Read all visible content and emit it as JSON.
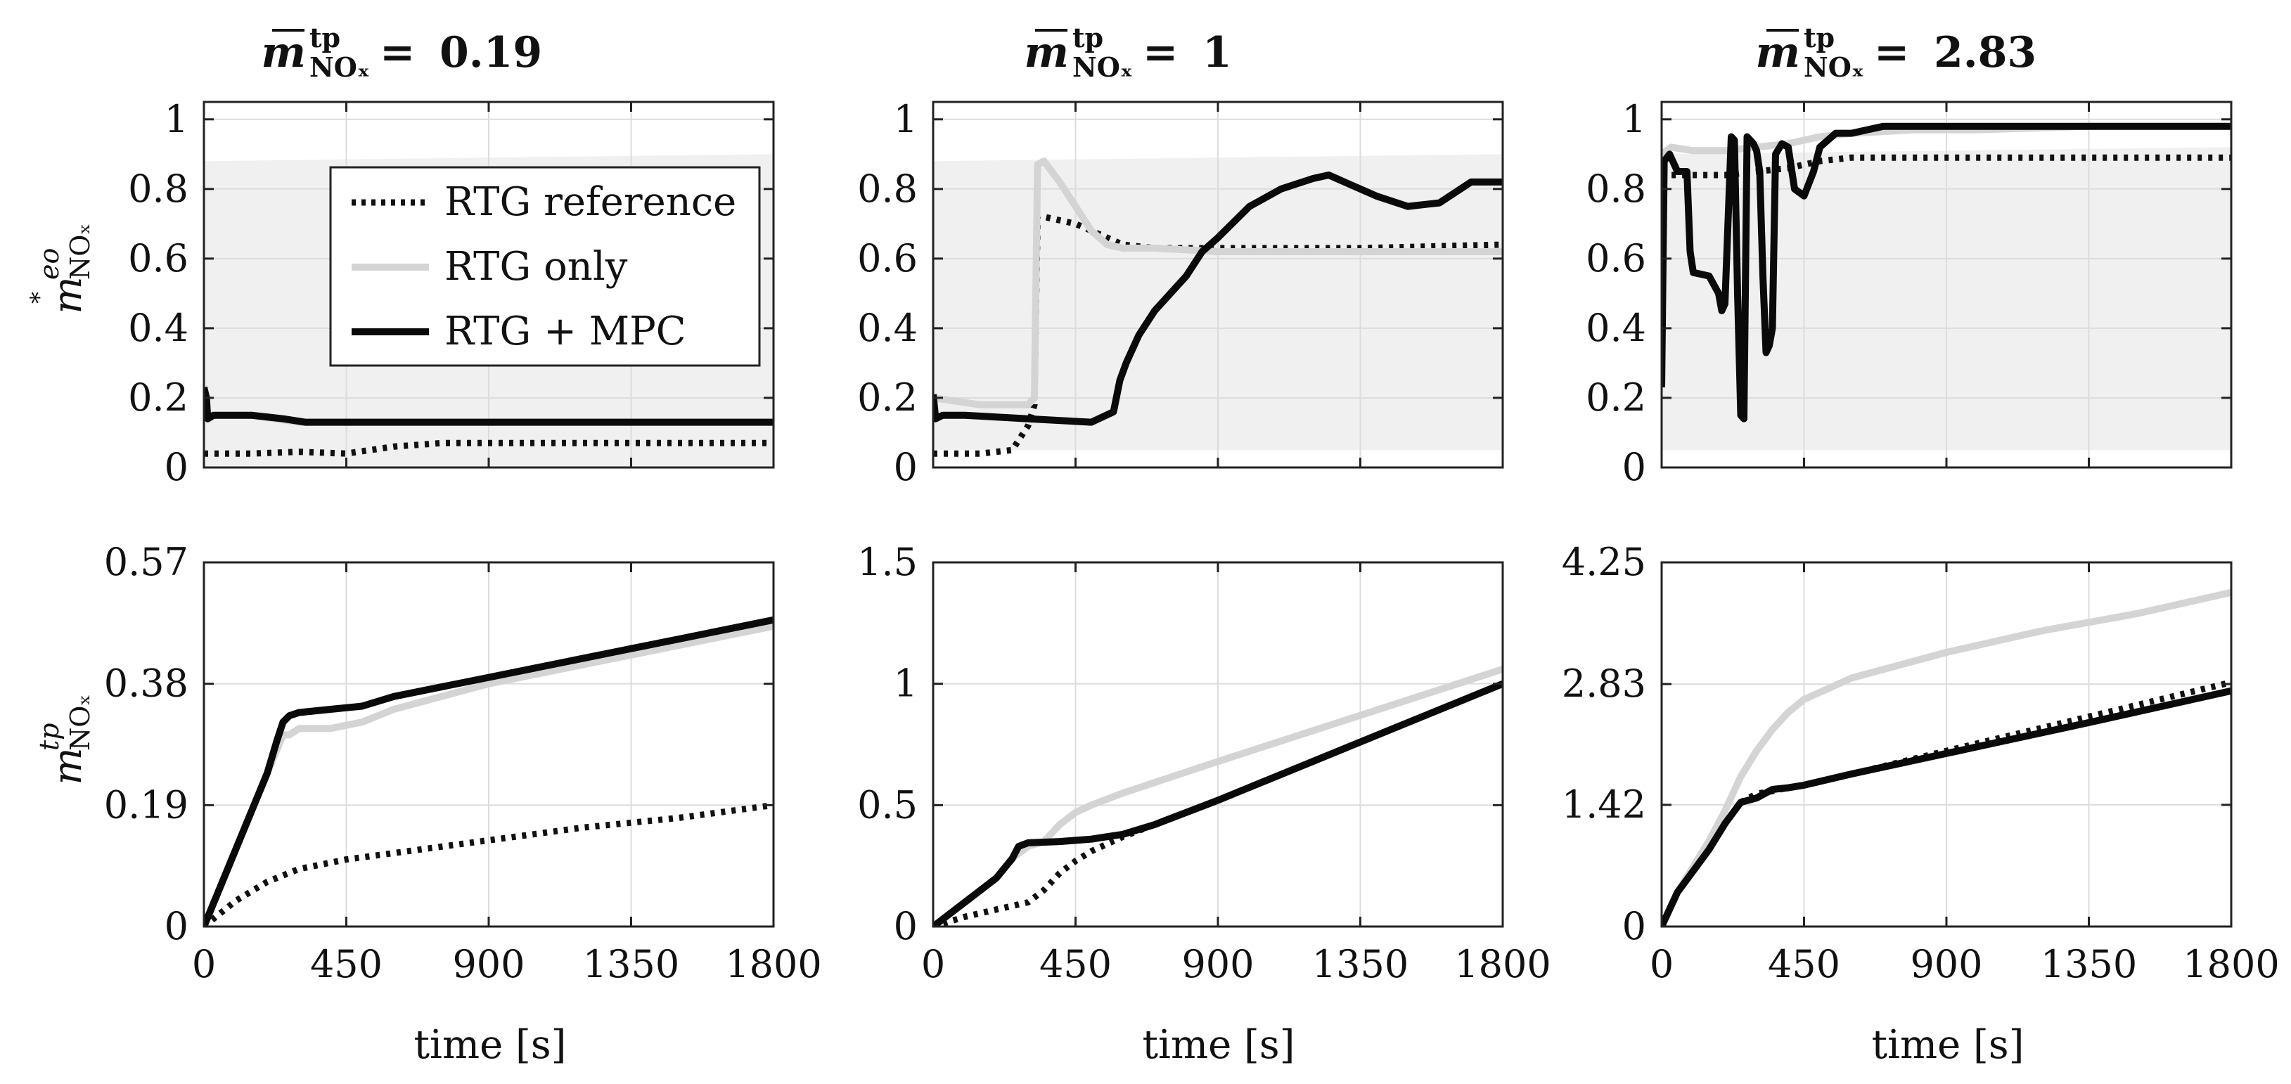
{
  "chart_data": [
    {
      "type": "line",
      "panel": "top-left",
      "title": "m̄ᵗᵖNOₓ = 0.19",
      "title_value": "0.19",
      "xlabel": "",
      "ylabel": "m*eoNOₓ",
      "xlim": [
        0,
        1800
      ],
      "ylim": [
        0,
        1.05
      ],
      "xticks": [
        0,
        450,
        900,
        1350,
        1800
      ],
      "xticklabels": [],
      "yticks": [
        0,
        0.2,
        0.4,
        0.6,
        0.8,
        1
      ],
      "yticklabels": [
        "0",
        "0.2",
        "0.4",
        "0.6",
        "0.8",
        "1"
      ],
      "band": {
        "x": [
          0,
          1800
        ],
        "lower": [
          0.0,
          0.0
        ],
        "upper": [
          0.88,
          0.9
        ]
      },
      "series": [
        {
          "name": "RTG reference",
          "style": "dotted",
          "x": [
            0,
            20,
            150,
            300,
            450,
            600,
            750,
            900,
            1200,
            1500,
            1800
          ],
          "y": [
            0.04,
            0.04,
            0.04,
            0.045,
            0.04,
            0.06,
            0.07,
            0.07,
            0.07,
            0.07,
            0.07
          ]
        },
        {
          "name": "RTG only",
          "style": "gray",
          "x": [
            0,
            10,
            60,
            150,
            300,
            450,
            600,
            900,
            1350,
            1800
          ],
          "y": [
            0.14,
            0.15,
            0.15,
            0.15,
            0.13,
            0.13,
            0.13,
            0.13,
            0.13,
            0.13
          ]
        },
        {
          "name": "RTG + MPC",
          "style": "solid",
          "x": [
            0,
            8,
            12,
            30,
            60,
            150,
            250,
            320,
            450,
            600,
            900,
            1350,
            1800
          ],
          "y": [
            0.23,
            0.2,
            0.14,
            0.15,
            0.15,
            0.15,
            0.14,
            0.13,
            0.13,
            0.13,
            0.13,
            0.13,
            0.13
          ]
        }
      ],
      "legend": {
        "location": "top-right",
        "entries": [
          "RTG reference",
          "RTG only",
          "RTG + MPC"
        ]
      }
    },
    {
      "type": "line",
      "panel": "top-middle",
      "title": "m̄ᵗᵖNOₓ = 1",
      "title_value": "1",
      "xlabel": "",
      "ylabel": "",
      "xlim": [
        0,
        1800
      ],
      "ylim": [
        0,
        1.05
      ],
      "xticks": [
        0,
        450,
        900,
        1350,
        1800
      ],
      "xticklabels": [],
      "yticks": [
        0,
        0.2,
        0.4,
        0.6,
        0.8,
        1
      ],
      "yticklabels": [
        "0",
        "0.2",
        "0.4",
        "0.6",
        "0.8",
        "1"
      ],
      "band": {
        "x": [
          0,
          1800
        ],
        "lower": [
          0.05,
          0.05
        ],
        "upper": [
          0.88,
          0.9
        ]
      },
      "series": [
        {
          "name": "RTG reference",
          "style": "dotted",
          "x": [
            0,
            150,
            250,
            300,
            320,
            330,
            350,
            400,
            450,
            500,
            550,
            600,
            700,
            900,
            1350,
            1800
          ],
          "y": [
            0.04,
            0.04,
            0.05,
            0.12,
            0.18,
            0.72,
            0.72,
            0.71,
            0.7,
            0.68,
            0.66,
            0.64,
            0.63,
            0.63,
            0.63,
            0.64
          ]
        },
        {
          "name": "RTG only",
          "style": "gray",
          "x": [
            0,
            150,
            300,
            320,
            330,
            350,
            400,
            450,
            500,
            550,
            600,
            650,
            700,
            900,
            1350,
            1800
          ],
          "y": [
            0.2,
            0.18,
            0.18,
            0.2,
            0.87,
            0.88,
            0.82,
            0.75,
            0.68,
            0.64,
            0.63,
            0.63,
            0.63,
            0.62,
            0.62,
            0.62
          ]
        },
        {
          "name": "RTG + MPC",
          "style": "solid",
          "x": [
            0,
            8,
            30,
            100,
            300,
            500,
            570,
            590,
            610,
            650,
            700,
            800,
            850,
            900,
            1000,
            1100,
            1200,
            1250,
            1300,
            1400,
            1500,
            1600,
            1700,
            1800
          ],
          "y": [
            0.21,
            0.14,
            0.15,
            0.15,
            0.14,
            0.13,
            0.16,
            0.25,
            0.3,
            0.38,
            0.45,
            0.55,
            0.62,
            0.66,
            0.75,
            0.8,
            0.83,
            0.84,
            0.82,
            0.78,
            0.75,
            0.76,
            0.82,
            0.82
          ]
        }
      ]
    },
    {
      "type": "line",
      "panel": "top-right",
      "title": "m̄ᵗᵖNOₓ = 2.83",
      "title_value": "2.83",
      "xlabel": "",
      "ylabel": "",
      "xlim": [
        0,
        1800
      ],
      "ylim": [
        0,
        1.05
      ],
      "xticks": [
        0,
        450,
        900,
        1350,
        1800
      ],
      "xticklabels": [],
      "yticks": [
        0,
        0.2,
        0.4,
        0.6,
        0.8,
        1
      ],
      "yticklabels": [
        "0",
        "0.2",
        "0.4",
        "0.6",
        "0.8",
        "1"
      ],
      "band": {
        "x": [
          0,
          1800
        ],
        "lower": [
          0.05,
          0.05
        ],
        "upper": [
          0.9,
          0.92
        ]
      },
      "series": [
        {
          "name": "RTG reference",
          "style": "dotted",
          "x": [
            0,
            30,
            100,
            200,
            300,
            400,
            500,
            600,
            900,
            1350,
            1800
          ],
          "y": [
            0.83,
            0.84,
            0.84,
            0.84,
            0.85,
            0.86,
            0.88,
            0.89,
            0.89,
            0.89,
            0.89
          ]
        },
        {
          "name": "RTG only",
          "style": "gray",
          "x": [
            0,
            30,
            100,
            200,
            300,
            400,
            500,
            600,
            800,
            1000,
            1350,
            1800
          ],
          "y": [
            0.9,
            0.92,
            0.91,
            0.91,
            0.92,
            0.93,
            0.95,
            0.96,
            0.97,
            0.97,
            0.98,
            0.98
          ]
        },
        {
          "name": "RTG + MPC",
          "style": "solid",
          "x": [
            0,
            8,
            25,
            50,
            80,
            90,
            100,
            150,
            180,
            190,
            200,
            220,
            230,
            240,
            250,
            260,
            270,
            280,
            290,
            300,
            310,
            320,
            330,
            340,
            350,
            360,
            380,
            400,
            420,
            450,
            480,
            500,
            550,
            600,
            700,
            800,
            900,
            1000,
            1200,
            1400,
            1600,
            1800
          ],
          "y": [
            0.23,
            0.88,
            0.9,
            0.85,
            0.85,
            0.62,
            0.56,
            0.55,
            0.5,
            0.45,
            0.47,
            0.95,
            0.94,
            0.5,
            0.15,
            0.14,
            0.95,
            0.94,
            0.93,
            0.91,
            0.85,
            0.55,
            0.33,
            0.35,
            0.4,
            0.9,
            0.93,
            0.92,
            0.8,
            0.78,
            0.85,
            0.92,
            0.96,
            0.96,
            0.98,
            0.98,
            0.98,
            0.98,
            0.98,
            0.98,
            0.98,
            0.98
          ]
        }
      ]
    },
    {
      "type": "line",
      "panel": "bottom-left",
      "xlabel": "time [s]",
      "ylabel": "mᵗᵖNOₓ",
      "xlim": [
        0,
        1800
      ],
      "ylim": [
        0,
        0.57
      ],
      "xticks": [
        0,
        450,
        900,
        1350,
        1800
      ],
      "xticklabels": [
        "0",
        "450",
        "900",
        "1350",
        "1800"
      ],
      "yticks": [
        0,
        0.19,
        0.38,
        0.57
      ],
      "yticklabels": [
        "0",
        "0.19",
        "0.38",
        "0.57"
      ],
      "series": [
        {
          "name": "RTG reference",
          "style": "dotted",
          "x": [
            0,
            50,
            100,
            150,
            200,
            300,
            400,
            450,
            600,
            900,
            1200,
            1500,
            1800
          ],
          "y": [
            0,
            0.02,
            0.04,
            0.055,
            0.07,
            0.09,
            0.1,
            0.105,
            0.115,
            0.135,
            0.155,
            0.17,
            0.19
          ]
        },
        {
          "name": "RTG only",
          "style": "gray",
          "x": [
            0,
            100,
            200,
            250,
            270,
            300,
            400,
            500,
            600,
            900,
            1200,
            1500,
            1800
          ],
          "y": [
            0,
            0.12,
            0.24,
            0.3,
            0.3,
            0.31,
            0.31,
            0.32,
            0.34,
            0.38,
            0.41,
            0.44,
            0.47
          ]
        },
        {
          "name": "RTG + MPC",
          "style": "solid",
          "x": [
            0,
            100,
            200,
            230,
            250,
            270,
            300,
            400,
            500,
            600,
            900,
            1200,
            1500,
            1800
          ],
          "y": [
            0,
            0.12,
            0.24,
            0.29,
            0.32,
            0.33,
            0.335,
            0.34,
            0.345,
            0.36,
            0.39,
            0.42,
            0.45,
            0.48
          ]
        }
      ]
    },
    {
      "type": "line",
      "panel": "bottom-middle",
      "xlabel": "time [s]",
      "ylabel": "",
      "xlim": [
        0,
        1800
      ],
      "ylim": [
        0,
        1.5
      ],
      "xticks": [
        0,
        450,
        900,
        1350,
        1800
      ],
      "xticklabels": [
        "0",
        "450",
        "900",
        "1350",
        "1800"
      ],
      "yticks": [
        0,
        0.5,
        1,
        1.5
      ],
      "yticklabels": [
        "0",
        "0.5",
        "1",
        "1.5"
      ],
      "series": [
        {
          "name": "RTG reference",
          "style": "dotted",
          "x": [
            0,
            100,
            200,
            300,
            350,
            400,
            450,
            500,
            600,
            700,
            900,
            1350,
            1800
          ],
          "y": [
            0,
            0.04,
            0.07,
            0.1,
            0.15,
            0.22,
            0.27,
            0.31,
            0.37,
            0.42,
            0.52,
            0.76,
            1.0
          ]
        },
        {
          "name": "RTG only",
          "style": "gray",
          "x": [
            0,
            100,
            200,
            250,
            300,
            350,
            400,
            450,
            500,
            600,
            900,
            1350,
            1800
          ],
          "y": [
            0,
            0.1,
            0.2,
            0.28,
            0.33,
            0.35,
            0.42,
            0.47,
            0.5,
            0.55,
            0.68,
            0.87,
            1.06
          ]
        },
        {
          "name": "RTG + MPC",
          "style": "solid",
          "x": [
            0,
            100,
            200,
            250,
            270,
            300,
            400,
            500,
            550,
            600,
            700,
            900,
            1350,
            1800
          ],
          "y": [
            0,
            0.1,
            0.2,
            0.28,
            0.33,
            0.345,
            0.35,
            0.36,
            0.37,
            0.38,
            0.42,
            0.52,
            0.76,
            1.0
          ]
        }
      ]
    },
    {
      "type": "line",
      "panel": "bottom-right",
      "xlabel": "time [s]",
      "ylabel": "",
      "xlim": [
        0,
        1800
      ],
      "ylim": [
        0,
        4.25
      ],
      "xticks": [
        0,
        450,
        900,
        1350,
        1800
      ],
      "xticklabels": [
        "0",
        "450",
        "900",
        "1350",
        "1800"
      ],
      "yticks": [
        0,
        1.42,
        2.83,
        4.25
      ],
      "yticklabels": [
        "0",
        "1.42",
        "2.83",
        "4.25"
      ],
      "series": [
        {
          "name": "RTG reference",
          "style": "dotted",
          "x": [
            0,
            50,
            100,
            150,
            200,
            250,
            300,
            350,
            400,
            450,
            600,
            900,
            1350,
            1800
          ],
          "y": [
            0,
            0.4,
            0.65,
            0.9,
            1.2,
            1.45,
            1.55,
            1.58,
            1.62,
            1.65,
            1.78,
            2.05,
            2.45,
            2.85
          ]
        },
        {
          "name": "RTG only",
          "style": "gray",
          "x": [
            0,
            50,
            100,
            150,
            200,
            250,
            300,
            350,
            400,
            450,
            600,
            900,
            1200,
            1500,
            1800
          ],
          "y": [
            0,
            0.4,
            0.7,
            1.0,
            1.35,
            1.75,
            2.05,
            2.3,
            2.5,
            2.65,
            2.9,
            3.2,
            3.45,
            3.65,
            3.9
          ]
        },
        {
          "name": "RTG + MPC",
          "style": "solid",
          "x": [
            0,
            50,
            100,
            150,
            200,
            250,
            300,
            350,
            400,
            450,
            600,
            900,
            1350,
            1800
          ],
          "y": [
            0,
            0.4,
            0.65,
            0.9,
            1.2,
            1.45,
            1.5,
            1.6,
            1.62,
            1.65,
            1.78,
            2.02,
            2.38,
            2.75
          ]
        }
      ]
    }
  ],
  "colors": {
    "rtg_reference": "#111111",
    "rtg_only": "#d4d4d4",
    "rtg_mpc": "#0a0a0a",
    "band": "#f0f0f0",
    "grid": "#dcdcdc",
    "axis": "#222222"
  }
}
